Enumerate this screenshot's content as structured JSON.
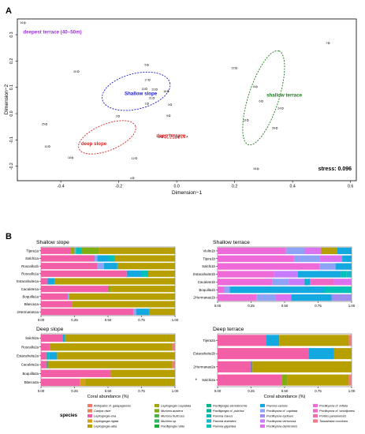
{
  "panels": {
    "a": "A",
    "b": "B"
  },
  "nmds": {
    "chart_data": {
      "type": "scatter",
      "xlabel": "Dimension−1",
      "ylabel": "Dimension−2",
      "xlim": [
        -0.55,
        0.62
      ],
      "ylim": [
        -0.255,
        0.36
      ],
      "xticks": [
        "-0.4",
        "-0.2",
        "0.0",
        "0.2",
        "0.4",
        "0.6"
      ],
      "xtick_values": [
        -0.4,
        -0.2,
        0.0,
        0.2,
        0.4,
        0.6
      ],
      "yticks": [
        "-0.2",
        "-0.1",
        "0.0",
        "0.1",
        "0.2",
        "0.3"
      ],
      "ytick_values": [
        -0.2,
        -0.1,
        0.0,
        0.1,
        0.2,
        0.3
      ],
      "stress": "stress: 0.096",
      "groups": [
        {
          "name": "deepest terrace (40–50m)",
          "color": "#9b30d9",
          "label_x": -0.53,
          "label_y": 0.305
        },
        {
          "name": "Shallow slope",
          "color": "#1a1ad6",
          "label_x": -0.18,
          "label_y": 0.07
        },
        {
          "name": "shallow terrace",
          "color": "#1f7a1f",
          "label_x": 0.31,
          "label_y": 0.065
        },
        {
          "name": "deep slope",
          "color": "#e02020",
          "label_x": -0.33,
          "label_y": -0.12
        },
        {
          "name": "deep terrace",
          "color": "#e02020",
          "label_x": -0.07,
          "label_y": -0.09
        }
      ],
      "ellipses": [
        {
          "group": "Shallow slope",
          "cx": -0.14,
          "cy": 0.085,
          "rx": 0.24,
          "ry": 0.135,
          "angle": -14,
          "color": "#1a1ad6"
        },
        {
          "group": "shallow terrace",
          "cx": 0.3,
          "cy": 0.06,
          "rx": 0.34,
          "ry": 0.115,
          "angle": -72,
          "color": "#1f7a1f"
        },
        {
          "group": "deep slope",
          "cx": -0.24,
          "cy": -0.09,
          "rx": 0.21,
          "ry": 0.1,
          "angle": -22,
          "color": "#e02020"
        },
        {
          "group": "deep terrace",
          "cx": -0.01,
          "cy": -0.087,
          "rx": 0.095,
          "ry": 0.013,
          "angle": 0,
          "color": "#e02020"
        }
      ],
      "points": [
        {
          "label": "14",
          "x": -0.525,
          "y": 0.345
        },
        {
          "label": "20",
          "x": -0.34,
          "y": 0.16
        },
        {
          "label": "5",
          "x": -0.1,
          "y": 0.185
        },
        {
          "label": "17",
          "x": -0.095,
          "y": 0.128
        },
        {
          "label": "15",
          "x": -0.105,
          "y": 0.094
        },
        {
          "label": "23",
          "x": -0.07,
          "y": 0.092
        },
        {
          "label": "16",
          "x": -0.03,
          "y": 0.085
        },
        {
          "label": "21",
          "x": -0.08,
          "y": 0.059
        },
        {
          "label": "1",
          "x": -0.1,
          "y": 0.038
        },
        {
          "label": "3",
          "x": -0.02,
          "y": 0.034
        },
        {
          "label": "2",
          "x": -0.2,
          "y": -0.01
        },
        {
          "label": "9",
          "x": -0.025,
          "y": -0.008
        },
        {
          "label": "25",
          "x": -0.45,
          "y": -0.04
        },
        {
          "label": "19",
          "x": -0.44,
          "y": -0.125
        },
        {
          "label": "18",
          "x": -0.36,
          "y": -0.168
        },
        {
          "label": "12",
          "x": -0.14,
          "y": -0.17
        },
        {
          "label": "11",
          "x": -0.05,
          "y": -0.089
        },
        {
          "label": "10",
          "x": 0.005,
          "y": -0.088
        },
        {
          "label": "4",
          "x": -0.15,
          "y": -0.245
        },
        {
          "label": "7",
          "x": 0.525,
          "y": 0.268
        },
        {
          "label": "22",
          "x": 0.205,
          "y": 0.173
        },
        {
          "label": "8",
          "x": 0.275,
          "y": 0.102
        },
        {
          "label": "6",
          "x": 0.295,
          "y": 0.047
        },
        {
          "label": "24",
          "x": 0.365,
          "y": 0.02
        },
        {
          "label": "13",
          "x": 0.245,
          "y": -0.025
        },
        {
          "label": "26",
          "x": 0.345,
          "y": -0.055
        },
        {
          "label": "16",
          "x": 0.28,
          "y": -0.21
        }
      ]
    }
  },
  "bars": {
    "chart_data": [
      {
        "type": "bar",
        "title": "Shallow slope",
        "categories": [
          "Tijera1a",
          "Salchi1a",
          "Roscallo1b",
          "Roscallo1a",
          "Estacahuite1a",
          "Cacalote1a",
          "Boquilla1a",
          "Blanca1a",
          "2Hermanas1a"
        ],
        "segments": [
          [
            [
              "Leptogorgia ena",
              0.22
            ],
            [
              "Leptogorgia cuspidata",
              0.03
            ],
            [
              "Pocillopora cf. capitata",
              0.01
            ],
            [
              "Pavona gigantea",
              0.04
            ],
            [
              "Muricea austera",
              0.13
            ],
            [
              "Leptogorgia alba",
              0.57
            ]
          ],
          [
            [
              "Leptogorgia ena",
              0.4
            ],
            [
              "Pocillopora cf. capitata",
              0.02
            ],
            [
              "Pavona varians",
              0.08
            ],
            [
              "Pavona gigantea",
              0.05
            ],
            [
              "Leptogorgia alba",
              0.45
            ]
          ],
          [
            [
              "Leptogorgia ena",
              0.42
            ],
            [
              "Pocillopora cf. capitata",
              0.05
            ],
            [
              "Pavona varians",
              0.1
            ],
            [
              "Leptogorgia alba",
              0.43
            ]
          ],
          [
            [
              "Leptogorgia ena",
              0.64
            ],
            [
              "Pavona varians",
              0.11
            ],
            [
              "Pavona gigantea",
              0.05
            ],
            [
              "Leptogorgia alba",
              0.2
            ]
          ],
          [
            [
              "Leptogorgia ena",
              0.05
            ],
            [
              "Pavona varians",
              0.05
            ],
            [
              "Leptogorgia alba",
              0.9
            ]
          ],
          [
            [
              "Leptogorgia ena",
              0.5
            ],
            [
              "Muricea austera",
              0.02
            ],
            [
              "Leptogorgia alba",
              0.48
            ]
          ],
          [
            [
              "Leptogorgia ena",
              0.2
            ],
            [
              "Pocillopora cf. capitata",
              0.01
            ],
            [
              "Leptogorgia alba",
              0.79
            ]
          ],
          [
            [
              "Leptogorgia ena",
              0.23
            ],
            [
              "Leptogorgia alba",
              0.77
            ]
          ],
          [
            [
              "Leptogorgia ena",
              0.69
            ],
            [
              "Pocillopora cf. capitata",
              0.02
            ],
            [
              "Pavona varians",
              0.1
            ],
            [
              "Leptogorgia alba",
              0.19
            ]
          ]
        ],
        "xticks": [
          "0.00",
          "0.25",
          "0.50",
          "0.75",
          "1.00"
        ]
      },
      {
        "type": "bar",
        "title": "Shallow terrace",
        "categories": [
          "Violin1b",
          "Tijera1b",
          "Salchi1b",
          "Estacahuite1b",
          "Cacalote1b",
          "Boquilla1b",
          "2Hermanas1b"
        ],
        "segments": [
          [
            [
              "Pocillopora cf. inflata",
              0.51
            ],
            [
              "Pocillopora cf. capitata",
              0.14
            ],
            [
              "Pocillopora damicornis",
              0.12
            ],
            [
              "Leptogorgia alba",
              0.12
            ],
            [
              "Pavona varians",
              0.11
            ]
          ],
          [
            [
              "Pocillopora cf. inflata",
              0.57
            ],
            [
              "Pocillopora cf. capitata",
              0.19
            ],
            [
              "Pocillopora damicornis",
              0.17
            ],
            [
              "Pavona varians",
              0.07
            ]
          ],
          [
            [
              "Pocillopora cf. inflata",
              0.76
            ],
            [
              "Pocillopora cf. capitata",
              0.12
            ],
            [
              "Pavona varians",
              0.12
            ]
          ],
          [
            [
              "Pocillopora cf. inflata",
              0.42
            ],
            [
              "Pocillopora verrucosa",
              0.18
            ],
            [
              "Pavona varians",
              0.32
            ],
            [
              "Pavona gigantea",
              0.04
            ],
            [
              "Pavona duerdeni",
              0.04
            ]
          ],
          [
            [
              "Pocillopora cf. inflata",
              0.41
            ],
            [
              "Pocillopora cf. capitata",
              0.12
            ],
            [
              "Pocillopora verrucosa",
              0.12
            ],
            [
              "Pavona clavus",
              0.02
            ],
            [
              "Pavona varians",
              0.02
            ],
            [
              "Pocillopora cf. woodjonesi",
              0.18
            ],
            [
              "Pocillopora damicornis",
              0.13
            ]
          ],
          [
            [
              "Pocillopora cf. inflata",
              0.05
            ],
            [
              "Pocillopora cf. capitata",
              0.04
            ],
            [
              "Pavona varians",
              0.71
            ],
            [
              "Pavona gigantea",
              0.2
            ]
          ],
          [
            [
              "Pocillopora cf. inflata",
              0.29
            ],
            [
              "Pocillopora cf. capitata",
              0.14
            ],
            [
              "Pocillopora damicornis",
              0.12
            ],
            [
              "Pavona varians",
              0.3
            ],
            [
              "Pocillopora eydouxi",
              0.15
            ]
          ]
        ],
        "xticks": [
          "0.00",
          "0.25",
          "0.50",
          "0.75",
          "1.00"
        ]
      },
      {
        "type": "bar",
        "title": "Deep slope",
        "categories": [
          "Salchi2a",
          "Roscallo2a",
          "Estacahuite2a",
          "Cacalote2a",
          "Boquilla2a",
          "Blanca2a"
        ],
        "segments": [
          [
            [
              "Leptogorgia ena",
              0.16
            ],
            [
              "Pavona varians",
              0.02
            ],
            [
              "Leptogorgia alba",
              0.82
            ]
          ],
          [
            [
              "Leptogorgia ena",
              0.07
            ],
            [
              "Leptogorgia alba",
              0.91
            ],
            [
              "Tubastraea coccinea",
              0.02
            ]
          ],
          [
            [
              "Leptogorgia ena",
              0.04
            ],
            [
              "Pavona gigantea",
              0.02
            ],
            [
              "Pavona varians",
              0.06
            ],
            [
              "Leptogorgia alba",
              0.88
            ]
          ],
          [
            [
              "Leptogorgia ena",
              0.04
            ],
            [
              "Pavona varians",
              0.01
            ],
            [
              "Leptogorgia alba",
              0.93
            ],
            [
              "Tubastraea coccinea",
              0.02
            ]
          ],
          [
            [
              "Leptogorgia ena",
              0.52
            ],
            [
              "Leptogorgia alba",
              0.48
            ]
          ],
          [
            [
              "Leptogorgia ena",
              0.29
            ],
            [
              "Leptogorgia rigida",
              0.04
            ],
            [
              "Leptogorgia alba",
              0.67
            ]
          ]
        ],
        "xticks": [
          "0.00",
          "0.25",
          "0.50",
          "0.75",
          "1.00"
        ],
        "xlabel": "Coral abundance (%)"
      },
      {
        "type": "bar",
        "title": "Deep terrace",
        "categories": [
          "Tijera2a",
          "Estacahuite2b",
          "2Hermanas2a",
          "Salchi2a"
        ],
        "segments": [
          [
            [
              "Leptogorgia ena",
              0.36
            ],
            [
              "Pavona varians",
              0.1
            ],
            [
              "Leptogorgia alba",
              0.52
            ],
            [
              "Tubastraea coccinea",
              0.02
            ]
          ],
          [
            [
              "Leptogorgia ena",
              0.68
            ],
            [
              "Pavona varians",
              0.19
            ],
            [
              "Leptogorgia alba",
              0.13
            ]
          ],
          [
            [
              "Leptogorgia ena",
              0.25
            ],
            [
              "Pavona varians",
              0.01
            ],
            [
              "Leptogorgia alba",
              0.74
            ]
          ],
          [
            [
              "Leptogorgia ena",
              0.48
            ],
            [
              "Muricea austera",
              0.04
            ],
            [
              "Leptogorgia alba",
              0.46
            ],
            [
              "Tubastraea coccinea",
              0.02
            ]
          ]
        ],
        "star_row": 3,
        "star": "*",
        "xticks": [
          "0.00",
          "0.25",
          "0.50",
          "0.75",
          "1.00"
        ],
        "xlabel": "Coral abundance (%)"
      }
    ]
  },
  "legend": {
    "title": "species",
    "items": [
      {
        "name": "Arrhipates cf. galapagensis",
        "color": "#f4776b"
      },
      {
        "name": "Carijoa riisei",
        "color": "#e8845a"
      },
      {
        "name": "Leptogorgia ena",
        "color": "#f25fa6"
      },
      {
        "name": "Leptogorgia rigida",
        "color": "#d4a017"
      },
      {
        "name": "Leptogorgia alba",
        "color": "#b79f00"
      },
      {
        "name": "Leptogorgia cuspidata",
        "color": "#9fa50a"
      },
      {
        "name": "Muricea austera",
        "color": "#7fad12"
      },
      {
        "name": "Muricea fruticosa",
        "color": "#4fb34a"
      },
      {
        "name": "Muricea sp.",
        "color": "#33b565"
      },
      {
        "name": "Pacifigorgia rutila",
        "color": "#1fab3a"
      },
      {
        "name": "Pacifigorgia stenobrochis",
        "color": "#00b388"
      },
      {
        "name": "Pacifigorgia cf. pulchra",
        "color": "#00b3a0"
      },
      {
        "name": "Pavona clavus",
        "color": "#00b6b6"
      },
      {
        "name": "Pavona duerdeni",
        "color": "#1ab7c9"
      },
      {
        "name": "Pavona gigantea",
        "color": "#00c0b8"
      },
      {
        "name": "Pavona varians",
        "color": "#14a8e0"
      },
      {
        "name": "Pocillopora cf. capitata",
        "color": "#8ea3f5"
      },
      {
        "name": "Pocillopora eydouxi",
        "color": "#a18cf0"
      },
      {
        "name": "Pocillopora verrucosa",
        "color": "#c77cff"
      },
      {
        "name": "Pocillopora damicornis",
        "color": "#dd72f0"
      },
      {
        "name": "Pocillopora cf. inflata",
        "color": "#ee6ad8"
      },
      {
        "name": "Pocillopora cf. woodjonesi",
        "color": "#f067c5"
      },
      {
        "name": "Porites panamensis",
        "color": "#f56aa8"
      },
      {
        "name": "Tubastraea coccinea",
        "color": "#f47a8a"
      }
    ]
  }
}
